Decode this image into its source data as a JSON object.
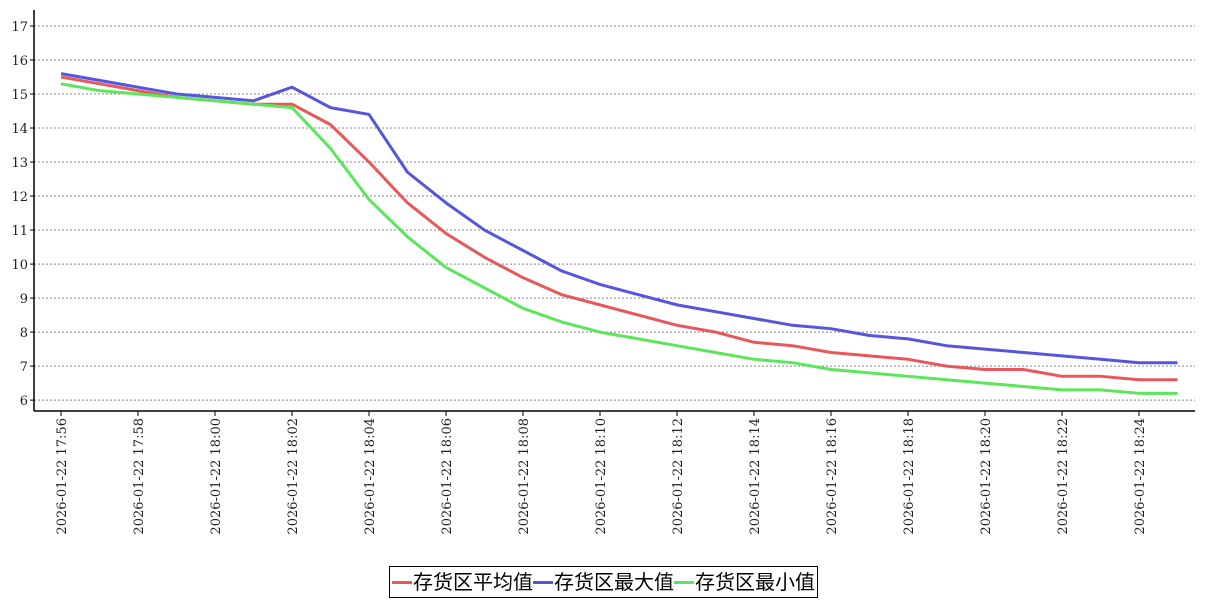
{
  "chart_data": {
    "type": "line",
    "categories": [
      "2026-01-22 17:56",
      null,
      "2026-01-22 17:58",
      null,
      "2026-01-22 18:00",
      null,
      "2026-01-22 18:02",
      null,
      "2026-01-22 18:04",
      null,
      "2026-01-22 18:06",
      null,
      "2026-01-22 18:08",
      null,
      "2026-01-22 18:10",
      null,
      "2026-01-22 18:12",
      null,
      "2026-01-22 18:14",
      null,
      "2026-01-22 18:16",
      null,
      "2026-01-22 18:18",
      null,
      "2026-01-22 18:20",
      null,
      "2026-01-22 18:22",
      null,
      "2026-01-22 18:24",
      null
    ],
    "series": [
      {
        "name": "存货区平均值",
        "color": "#e8585a",
        "values": [
          15.5,
          15.3,
          15.1,
          14.9,
          14.8,
          14.7,
          14.7,
          14.1,
          13.0,
          11.8,
          10.9,
          10.2,
          9.6,
          9.1,
          8.8,
          8.5,
          8.2,
          8.0,
          7.7,
          7.6,
          7.4,
          7.3,
          7.2,
          7.0,
          6.9,
          6.9,
          6.7,
          6.7,
          6.6,
          6.6
        ]
      },
      {
        "name": "存货区最大值",
        "color": "#5555dd",
        "values": [
          15.6,
          15.4,
          15.2,
          15.0,
          14.9,
          14.8,
          15.2,
          14.6,
          14.4,
          12.7,
          11.8,
          11.0,
          10.4,
          9.8,
          9.4,
          9.1,
          8.8,
          8.6,
          8.4,
          8.2,
          8.1,
          7.9,
          7.8,
          7.6,
          7.5,
          7.4,
          7.3,
          7.2,
          7.1,
          7.1
        ]
      },
      {
        "name": "存货区最小值",
        "color": "#5ce65c",
        "values": [
          15.3,
          15.1,
          15.0,
          14.9,
          14.8,
          14.7,
          14.6,
          13.4,
          11.9,
          10.8,
          9.9,
          9.3,
          8.7,
          8.3,
          8.0,
          7.8,
          7.6,
          7.4,
          7.2,
          7.1,
          6.9,
          6.8,
          6.7,
          6.6,
          6.5,
          6.4,
          6.3,
          6.3,
          6.2,
          6.2
        ]
      }
    ],
    "ylim": [
      5.68,
      17.47
    ],
    "yticks": [
      6,
      7,
      8,
      9,
      10,
      11,
      12,
      13,
      14,
      15,
      16,
      17
    ],
    "grid": true,
    "legend": "bottom"
  }
}
